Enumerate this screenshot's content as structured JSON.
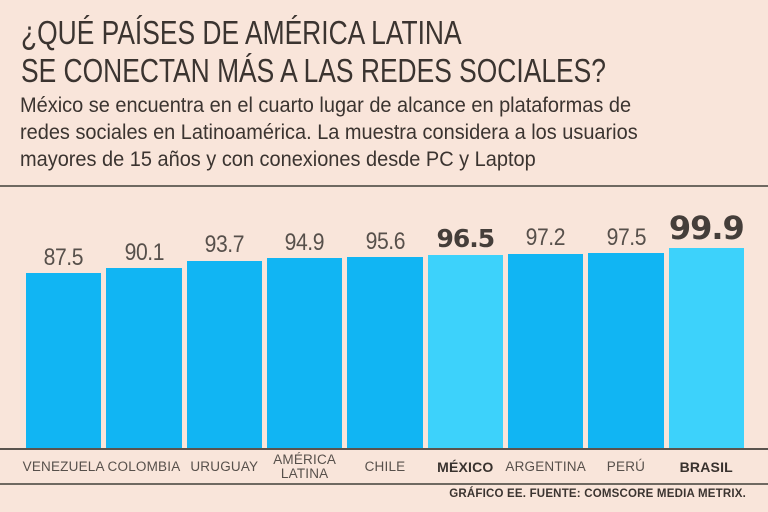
{
  "page": {
    "background": "#f9e5da"
  },
  "header": {
    "title_line1": "¿QUÉ PAÍSES DE AMÉRICA LATINA",
    "title_line2": "SE CONECTAN MÁS A LAS REDES SOCIALES?",
    "subtitle_lines": [
      "México se encuentra en el cuarto lugar de alcance en plataformas de",
      "redes sociales en Latinoamérica. La muestra considera a los usuarios",
      "mayores de 15 años y con conexiones desde PC y Laptop"
    ]
  },
  "footer": {
    "source": "GRÁFICO EE. FUENTE: COMSCORE MEDIA METRIX."
  },
  "colors": {
    "background": "#f9e5da",
    "bar_default": "#11b5f3",
    "bar_highlight": "#3dd2fb",
    "text_dark": "#3b3430",
    "text_mid": "#57504b",
    "rule_gray": "#6f6961"
  },
  "chart_data": {
    "type": "bar",
    "title": "¿QUÉ PAÍSES DE AMÉRICA LATINA SE CONECTAN MÁS A LAS REDES SOCIALES?",
    "categories": [
      "VENEZUELA",
      "COLOMBIA",
      "URUGUAY",
      "AMÉRICA LATINA",
      "CHILE",
      "MÉXICO",
      "ARGENTINA",
      "PERÚ",
      "BRASIL"
    ],
    "values": [
      87.5,
      90.1,
      93.7,
      94.9,
      95.6,
      96.5,
      97.2,
      97.5,
      99.9
    ],
    "emphasis": [
      "none",
      "none",
      "none",
      "none",
      "none",
      "bold",
      "none",
      "none",
      "strong"
    ],
    "highlighted_categories": [
      "MÉXICO",
      "BRASIL"
    ],
    "bar_colors": {
      "default": "#11b5f3",
      "highlight": "#3dd2fb"
    },
    "xlabel": "",
    "ylabel": "",
    "ylim": [
      0,
      100
    ],
    "grid": false,
    "legend": null,
    "value_labels": true
  }
}
